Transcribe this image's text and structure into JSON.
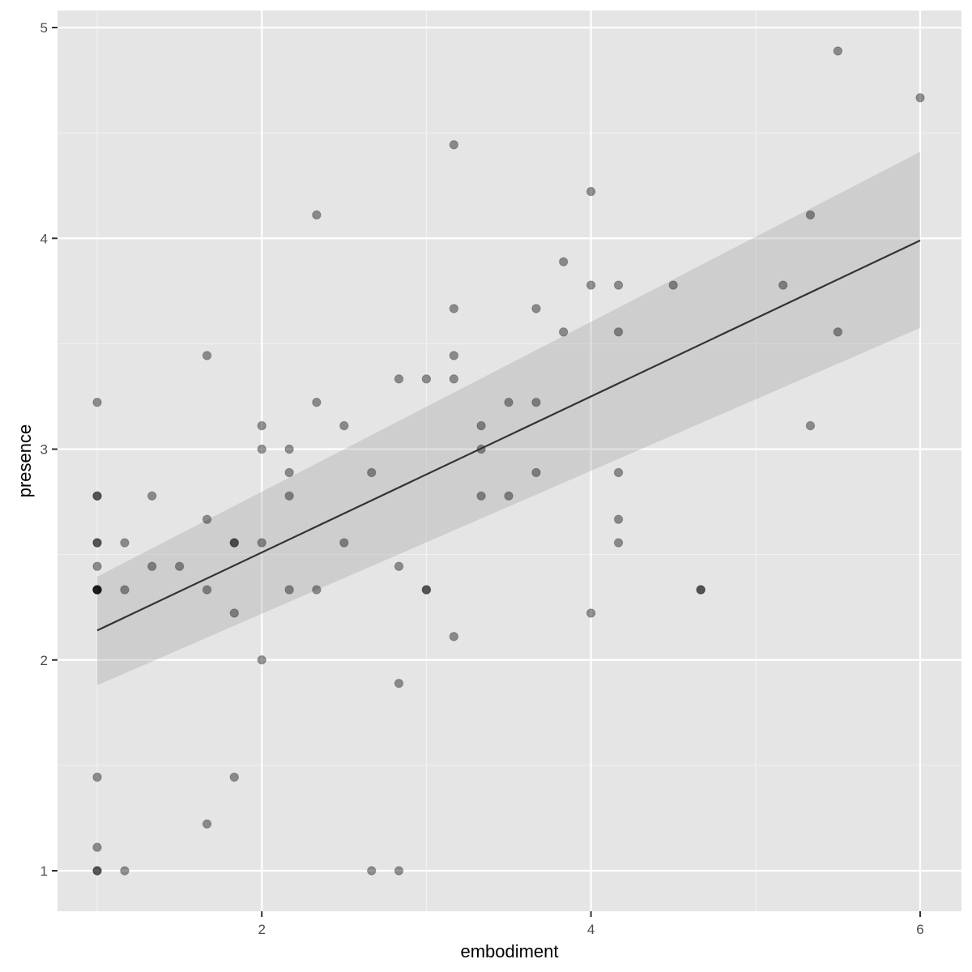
{
  "chart_data": {
    "type": "scatter",
    "title": "",
    "xlabel": "embodiment",
    "ylabel": "presence",
    "xlim": [
      0.75,
      6.25
    ],
    "ylim": [
      0.8,
      5.08
    ],
    "x_ticks": [
      2,
      4,
      6
    ],
    "x_tick_labels": [
      "2",
      "4",
      "6"
    ],
    "y_ticks": [
      1,
      2,
      3,
      4,
      5
    ],
    "y_tick_labels": [
      "1",
      "2",
      "3",
      "4",
      "5"
    ],
    "grid": true,
    "legend": null,
    "point_alpha": 0.4,
    "points": [
      [
        1,
        3.222
      ],
      [
        1,
        2.778
      ],
      [
        1,
        2.778
      ],
      [
        1,
        2.556
      ],
      [
        1,
        2.556
      ],
      [
        1,
        2.444
      ],
      [
        1,
        2.333
      ],
      [
        1,
        2.333
      ],
      [
        1,
        2.333
      ],
      [
        1,
        2.333
      ],
      [
        1,
        1.444
      ],
      [
        1,
        1.111
      ],
      [
        1,
        1
      ],
      [
        1,
        1
      ],
      [
        1.167,
        2.556
      ],
      [
        1.167,
        2.333
      ],
      [
        1.167,
        1
      ],
      [
        1.333,
        2.778
      ],
      [
        1.333,
        2.444
      ],
      [
        1.5,
        2.444
      ],
      [
        1.667,
        3.444
      ],
      [
        1.667,
        2.667
      ],
      [
        1.667,
        2.333
      ],
      [
        1.667,
        1.222
      ],
      [
        1.833,
        2.556
      ],
      [
        1.833,
        2.556
      ],
      [
        1.833,
        2.222
      ],
      [
        1.833,
        1.444
      ],
      [
        2,
        3.111
      ],
      [
        2,
        3.0
      ],
      [
        2,
        2.556
      ],
      [
        2,
        2.0
      ],
      [
        2.167,
        3.0
      ],
      [
        2.167,
        2.889
      ],
      [
        2.167,
        2.778
      ],
      [
        2.167,
        2.333
      ],
      [
        2.333,
        4.111
      ],
      [
        2.333,
        3.222
      ],
      [
        2.333,
        2.333
      ],
      [
        2.5,
        3.111
      ],
      [
        2.5,
        2.556
      ],
      [
        2.667,
        2.889
      ],
      [
        2.667,
        1
      ],
      [
        2.833,
        3.333
      ],
      [
        2.833,
        2.444
      ],
      [
        2.833,
        1.889
      ],
      [
        2.833,
        1
      ],
      [
        3,
        3.333
      ],
      [
        3,
        2.333
      ],
      [
        3,
        2.333
      ],
      [
        3.167,
        4.444
      ],
      [
        3.167,
        3.667
      ],
      [
        3.167,
        3.444
      ],
      [
        3.167,
        3.333
      ],
      [
        3.167,
        2.111
      ],
      [
        3.333,
        3.111
      ],
      [
        3.333,
        3.0
      ],
      [
        3.333,
        2.778
      ],
      [
        3.5,
        3.222
      ],
      [
        3.5,
        2.778
      ],
      [
        3.667,
        3.667
      ],
      [
        3.667,
        3.222
      ],
      [
        3.667,
        2.889
      ],
      [
        3.833,
        3.889
      ],
      [
        3.833,
        3.556
      ],
      [
        4,
        4.222
      ],
      [
        4,
        3.778
      ],
      [
        4,
        2.222
      ],
      [
        4.167,
        3.778
      ],
      [
        4.167,
        3.556
      ],
      [
        4.167,
        2.889
      ],
      [
        4.167,
        2.667
      ],
      [
        4.167,
        2.556
      ],
      [
        4.5,
        3.778
      ],
      [
        4.667,
        2.333
      ],
      [
        4.667,
        2.333
      ],
      [
        5.167,
        3.778
      ],
      [
        5.333,
        4.111
      ],
      [
        5.333,
        3.111
      ],
      [
        5.5,
        4.889
      ],
      [
        5.5,
        3.556
      ],
      [
        6,
        4.667
      ]
    ],
    "regression": {
      "method": "lm",
      "x": [
        1,
        6
      ],
      "y": [
        2.14,
        3.99
      ],
      "ci_lower": [
        1.88,
        3.575
      ],
      "ci_upper": [
        2.395,
        4.41
      ]
    },
    "colors": {
      "panel_background": "#e5e5e5",
      "grid_major": "#ffffff",
      "point": "#000000",
      "line": "#333333",
      "ribbon": "#999999"
    }
  }
}
